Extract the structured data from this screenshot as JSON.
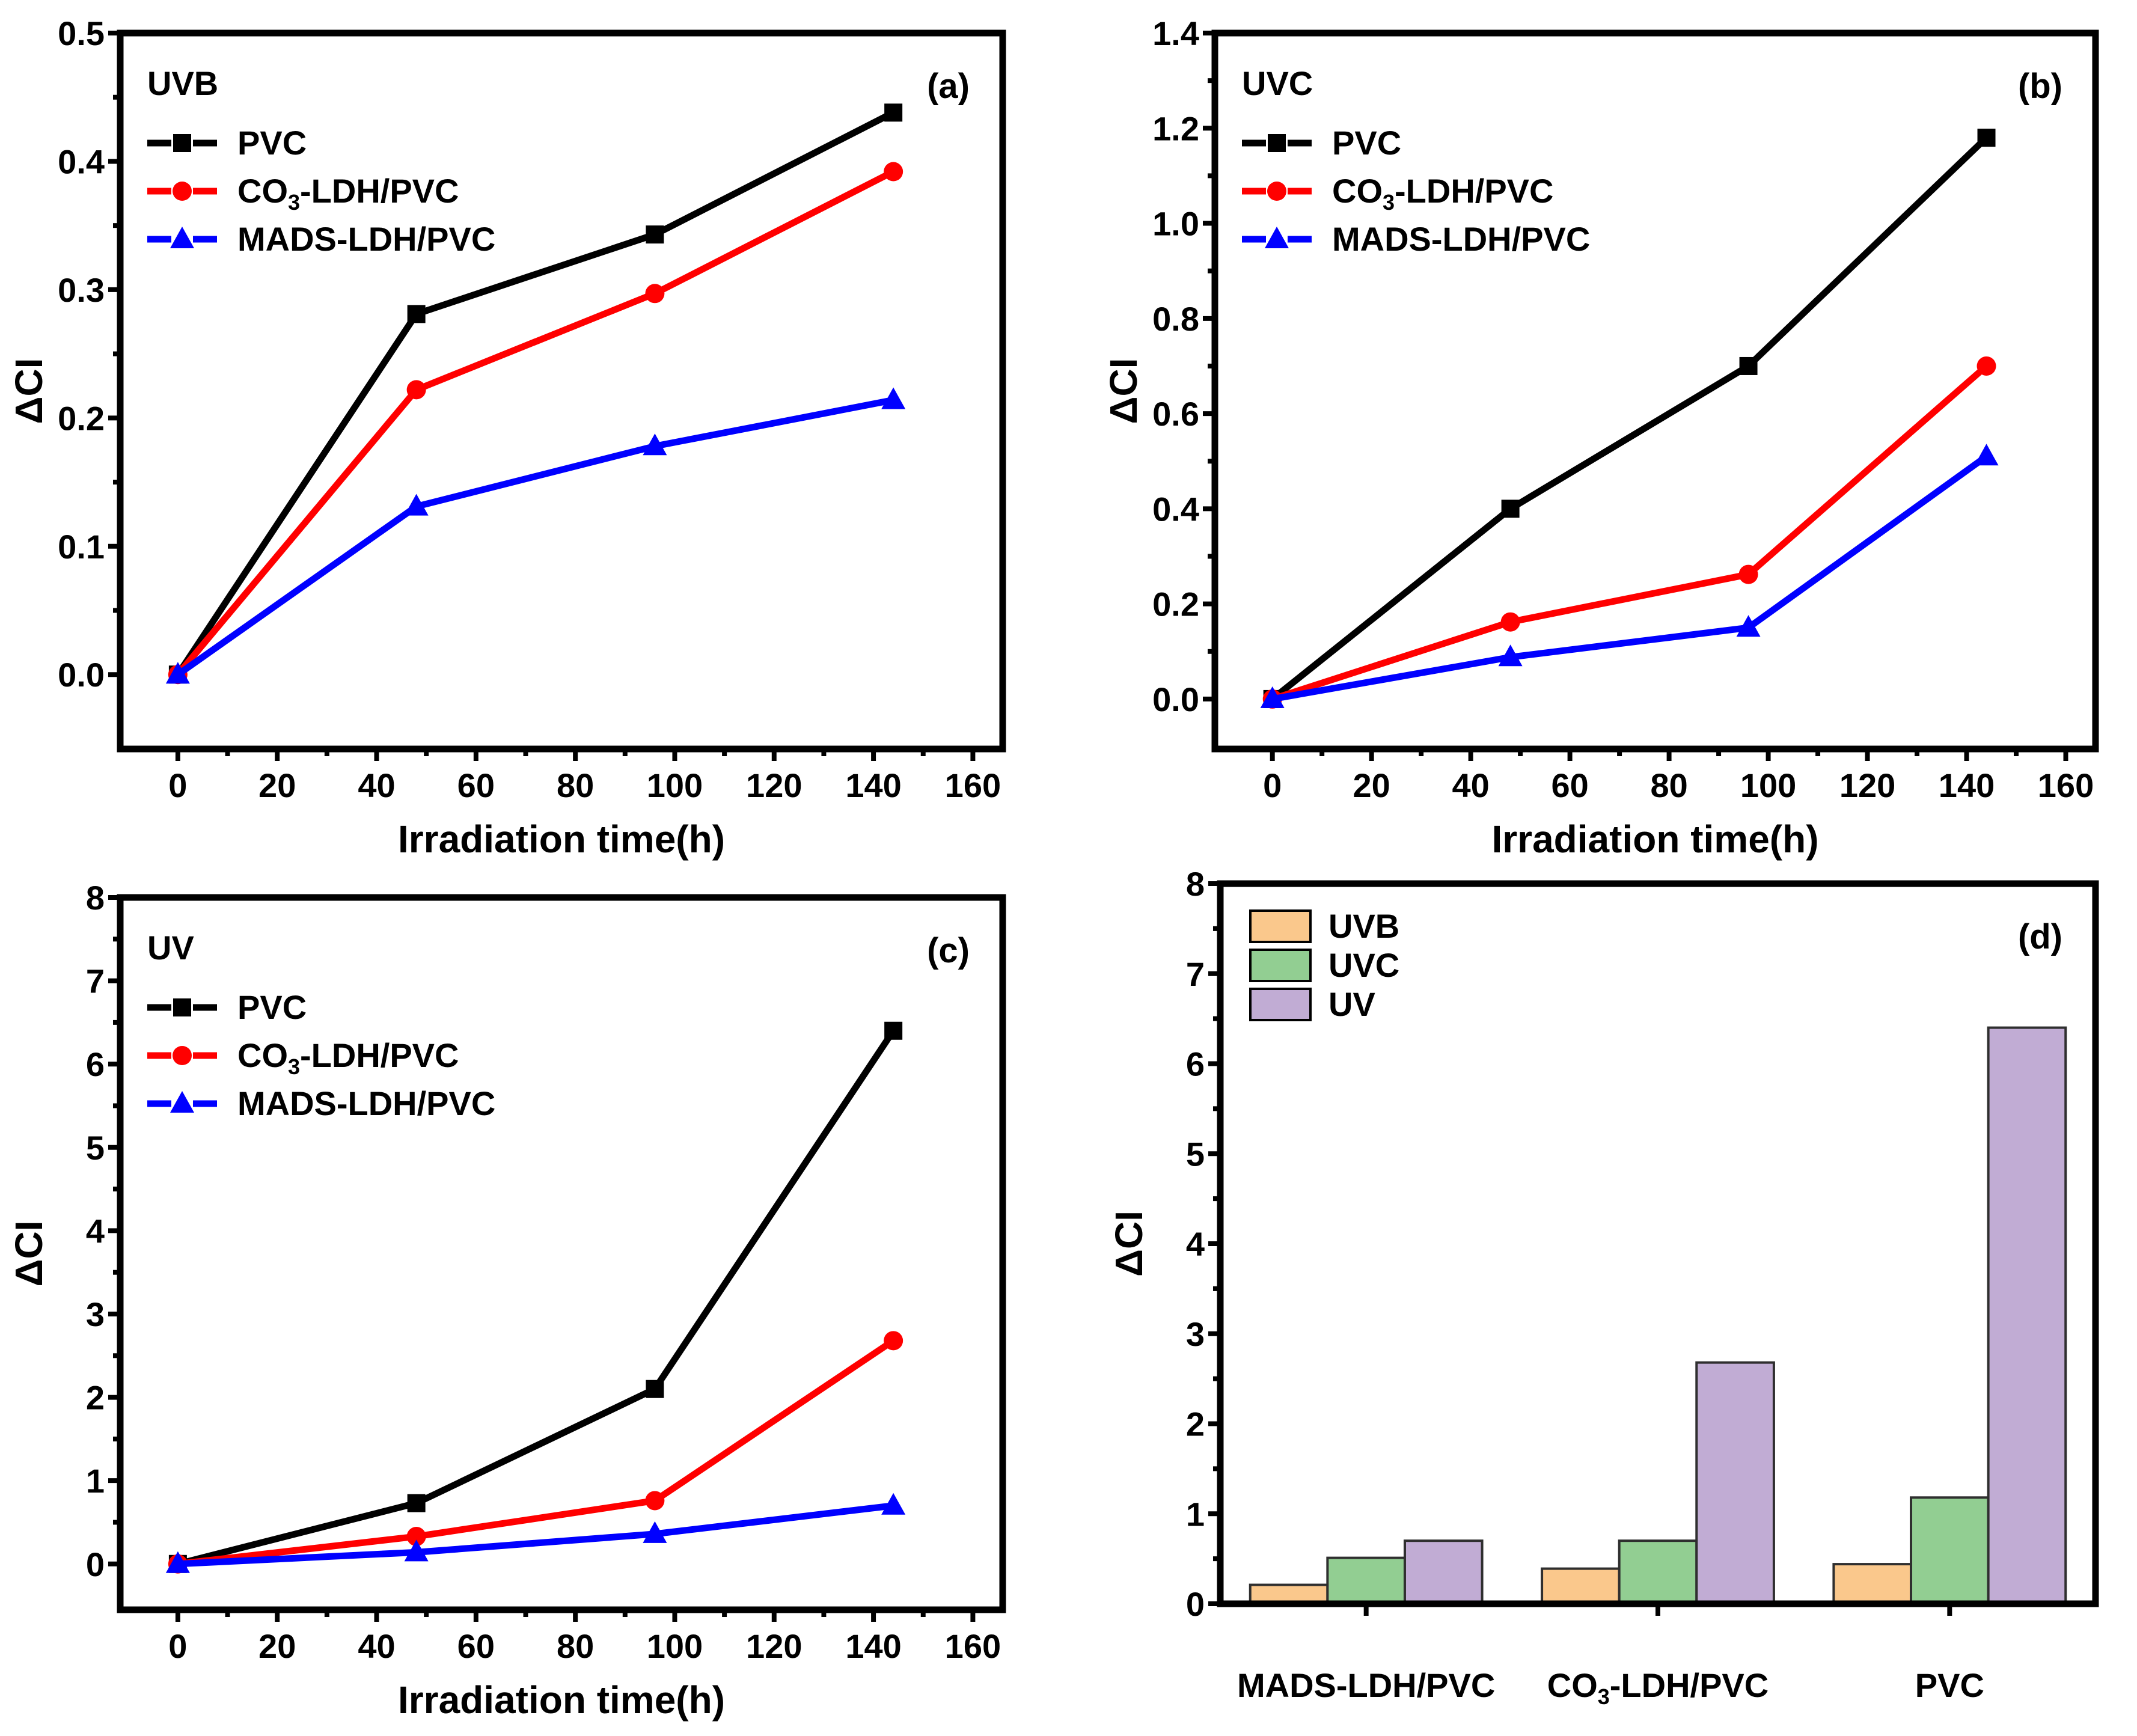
{
  "figure": {
    "background": "#FFFFFF",
    "panel_letters": [
      "(a)",
      "(b)",
      "(c)",
      "(d)"
    ]
  },
  "colors": {
    "axis": "#000000",
    "pvc_line": "#000000",
    "co3_line": "#FF0000",
    "mads_line": "#0000FF",
    "bar_uvb": "#FAC88C",
    "bar_uvc": "#92CE92",
    "bar_uv": "#C1ACD4",
    "bar_edge": "#2F2F2F"
  },
  "chart_data": [
    {
      "id": "a",
      "type": "line",
      "panel_label": "(a)",
      "legend_title": "UVB",
      "legend_position": "top-left",
      "xlabel": "Irradiation time(h)",
      "ylabel": "ΔCI",
      "x": [
        0,
        48,
        96,
        144
      ],
      "xlim": [
        -11.6,
        166
      ],
      "ylim": [
        -0.058,
        0.5
      ],
      "xticks": [
        0,
        20,
        40,
        60,
        80,
        100,
        120,
        140,
        160
      ],
      "xminor_step": 10,
      "yticks": [
        0,
        0.1,
        0.2,
        0.3,
        0.4,
        0.5
      ],
      "ytick_labels": [
        "0.0",
        "0.1",
        "0.2",
        "0.3",
        "0.4",
        "0.5"
      ],
      "yminor_step": 0.05,
      "grid": false,
      "series": [
        {
          "name": [
            {
              "t": "PVC"
            }
          ],
          "color": "#000000",
          "marker": "square",
          "values": [
            0,
            0.281,
            0.343,
            0.438
          ]
        },
        {
          "name": [
            {
              "t": "CO"
            },
            {
              "t": "3",
              "sub": true
            },
            {
              "t": "-LDH/PVC"
            }
          ],
          "color": "#FF0000",
          "marker": "circle",
          "values": [
            0,
            0.222,
            0.297,
            0.392
          ]
        },
        {
          "name": [
            {
              "t": "MADS-LDH/PVC"
            }
          ],
          "color": "#0000FF",
          "marker": "triangle",
          "values": [
            0,
            0.131,
            0.178,
            0.214
          ]
        }
      ]
    },
    {
      "id": "b",
      "type": "line",
      "panel_label": "(b)",
      "legend_title": "UVC",
      "legend_position": "top-left",
      "xlabel": "Irradiation time(h)",
      "ylabel": "ΔCI",
      "x": [
        0,
        48,
        96,
        144
      ],
      "xlim": [
        -11.6,
        166
      ],
      "ylim": [
        -0.105,
        1.4
      ],
      "xticks": [
        0,
        20,
        40,
        60,
        80,
        100,
        120,
        140,
        160
      ],
      "xminor_step": 10,
      "yticks": [
        0,
        0.2,
        0.4,
        0.6,
        0.8,
        1.0,
        1.2,
        1.4
      ],
      "ytick_labels": [
        "0.0",
        "0.2",
        "0.4",
        "0.6",
        "0.8",
        "1.0",
        "1.2",
        "1.4"
      ],
      "yminor_step": 0.1,
      "grid": false,
      "series": [
        {
          "name": [
            {
              "t": "PVC"
            }
          ],
          "color": "#000000",
          "marker": "square",
          "values": [
            0,
            0.4,
            0.7,
            1.18
          ]
        },
        {
          "name": [
            {
              "t": "CO"
            },
            {
              "t": "3",
              "sub": true
            },
            {
              "t": "-LDH/PVC"
            }
          ],
          "color": "#FF0000",
          "marker": "circle",
          "values": [
            0,
            0.162,
            0.262,
            0.7
          ]
        },
        {
          "name": [
            {
              "t": "MADS-LDH/PVC"
            }
          ],
          "color": "#0000FF",
          "marker": "triangle",
          "values": [
            0,
            0.088,
            0.15,
            0.51
          ]
        }
      ]
    },
    {
      "id": "c",
      "type": "line",
      "panel_label": "(c)",
      "legend_title": "UV",
      "legend_position": "top-left",
      "xlabel": "Irradiation time(h)",
      "ylabel": "ΔCI",
      "x": [
        0,
        48,
        96,
        144
      ],
      "xlim": [
        -11.6,
        166
      ],
      "ylim": [
        -0.55,
        8
      ],
      "xticks": [
        0,
        20,
        40,
        60,
        80,
        100,
        120,
        140,
        160
      ],
      "xminor_step": 10,
      "yticks": [
        0,
        1,
        2,
        3,
        4,
        5,
        6,
        7,
        8
      ],
      "ytick_labels": [
        "0",
        "1",
        "2",
        "3",
        "4",
        "5",
        "6",
        "7",
        "8"
      ],
      "yminor_step": 0.5,
      "grid": false,
      "series": [
        {
          "name": [
            {
              "t": "PVC"
            }
          ],
          "color": "#000000",
          "marker": "square",
          "values": [
            0,
            0.73,
            2.1,
            6.4
          ]
        },
        {
          "name": [
            {
              "t": "CO"
            },
            {
              "t": "3",
              "sub": true
            },
            {
              "t": "-LDH/PVC"
            }
          ],
          "color": "#FF0000",
          "marker": "circle",
          "values": [
            0,
            0.33,
            0.76,
            2.68
          ]
        },
        {
          "name": [
            {
              "t": "MADS-LDH/PVC"
            }
          ],
          "color": "#0000FF",
          "marker": "triangle",
          "values": [
            0,
            0.14,
            0.36,
            0.7
          ]
        }
      ]
    },
    {
      "id": "d",
      "type": "bar",
      "panel_label": "(d)",
      "legend_position": "top-left",
      "ylabel": "ΔCI",
      "categories": [
        [
          {
            "t": "MADS-LDH/PVC"
          }
        ],
        [
          {
            "t": "CO"
          },
          {
            "t": "3",
            "sub": true
          },
          {
            "t": "-LDH/PVC"
          }
        ],
        [
          {
            "t": "PVC"
          }
        ]
      ],
      "ylim": [
        0,
        8
      ],
      "yticks": [
        0,
        1,
        2,
        3,
        4,
        5,
        6,
        7,
        8
      ],
      "ytick_labels": [
        "0",
        "1",
        "2",
        "3",
        "4",
        "5",
        "6",
        "7",
        "8"
      ],
      "yminor_step": 0.5,
      "grid": false,
      "series": [
        {
          "name": [
            {
              "t": "UVB"
            }
          ],
          "color": "#FAC88C",
          "values": [
            0.21,
            0.39,
            0.44
          ]
        },
        {
          "name": [
            {
              "t": "UVC"
            }
          ],
          "color": "#92CE92",
          "values": [
            0.51,
            0.7,
            1.18
          ]
        },
        {
          "name": [
            {
              "t": "UV"
            }
          ],
          "color": "#C1ACD4",
          "values": [
            0.7,
            2.68,
            6.4
          ]
        }
      ]
    }
  ]
}
